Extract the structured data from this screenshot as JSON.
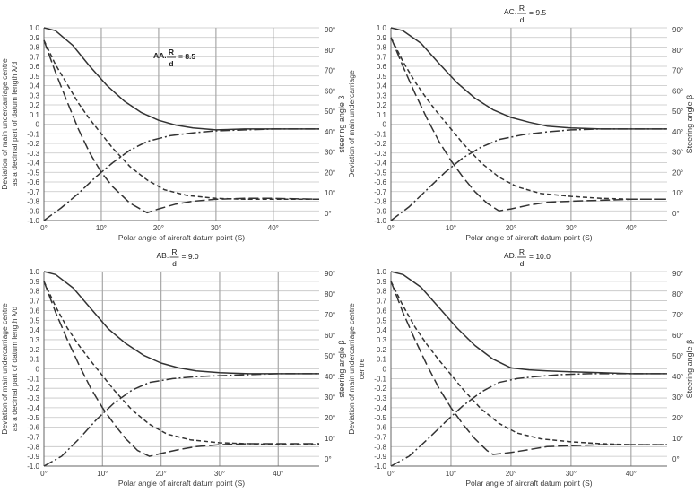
{
  "chart_data": [
    {
      "type": "line",
      "panel": "top-left",
      "title_prefix": "AA.",
      "title_frac_top": "R",
      "title_frac_bottom": "d",
      "title_value": "= 8.5",
      "xlabel": "Polar angle of aircraft datum point (S)",
      "ylabel_lines": [
        "Deviation of main undercarriage centre",
        "as a decimal part of datum length λ/d"
      ],
      "y2label": "steering angle β",
      "xlim": [
        0,
        48
      ],
      "ylim": [
        -1.0,
        1.0
      ],
      "xticks": [
        "0°",
        "10°",
        "20°",
        "30°",
        "40°"
      ],
      "yticks": [
        "1.0",
        "0.9",
        "0.8",
        "0.7",
        "0.6",
        "0.5",
        "0.4",
        "0.3",
        "0.2",
        "0.1",
        "0",
        "-0.1",
        "-0.2",
        "-0.3",
        "-0.4",
        "-0.5",
        "-0.6",
        "-0.7",
        "-0.8",
        "-0.9",
        "-1.0"
      ],
      "y2ticks": [
        "90°",
        "80°",
        "70°",
        "60°",
        "50°",
        "40°",
        "30°",
        "20°",
        "10°",
        "0°"
      ],
      "grid": true,
      "series": [
        {
          "style": "solid",
          "x": [
            0,
            2,
            5,
            8,
            11,
            14,
            17,
            20,
            23,
            26,
            30,
            35,
            40,
            48
          ],
          "y": [
            1.0,
            0.97,
            0.82,
            0.6,
            0.4,
            0.24,
            0.12,
            0.04,
            -0.01,
            -0.04,
            -0.06,
            -0.05,
            -0.05,
            -0.05
          ]
        },
        {
          "style": "short-dash",
          "x": [
            0,
            2,
            4,
            6,
            8,
            10,
            12,
            15,
            18,
            21,
            25,
            30,
            35,
            40,
            48
          ],
          "y": [
            0.87,
            0.62,
            0.42,
            0.22,
            0.05,
            -0.1,
            -0.25,
            -0.44,
            -0.58,
            -0.68,
            -0.74,
            -0.77,
            -0.78,
            -0.78,
            -0.78
          ]
        },
        {
          "style": "long-dash",
          "x": [
            0,
            2,
            4,
            6,
            8,
            10,
            12,
            15,
            18,
            20,
            23,
            26,
            30,
            35,
            40,
            48
          ],
          "y": [
            0.87,
            0.54,
            0.24,
            -0.05,
            -0.3,
            -0.5,
            -0.65,
            -0.82,
            -0.92,
            -0.88,
            -0.83,
            -0.8,
            -0.78,
            -0.77,
            -0.77,
            -0.78
          ]
        },
        {
          "style": "dash-dot",
          "x": [
            0,
            3,
            6,
            9,
            12,
            15,
            18,
            22,
            26,
            30,
            35,
            40,
            48
          ],
          "y": [
            -1.0,
            -0.87,
            -0.72,
            -0.55,
            -0.4,
            -0.27,
            -0.18,
            -0.12,
            -0.09,
            -0.07,
            -0.06,
            -0.05,
            -0.05
          ]
        }
      ]
    },
    {
      "type": "line",
      "panel": "top-right",
      "title_prefix": "AC.",
      "title_frac_top": "R",
      "title_frac_bottom": "d",
      "title_value": "= 9.5",
      "xlabel": "Polar angle of aircraft datum point (S)",
      "ylabel_lines": [
        "Deviation of main undercarriage"
      ],
      "y2label": "Steering angle β",
      "xlim": [
        0,
        46
      ],
      "ylim": [
        -1.0,
        1.0
      ],
      "xticks": [
        "0°",
        "10°",
        "20°",
        "30°",
        "40°"
      ],
      "yticks": [
        "1.0",
        "0.9",
        "0.8",
        "0.7",
        "0.6",
        "0.5",
        "0.4",
        "0.3",
        "0.2",
        "0.1",
        "0",
        "-0.1",
        "-0.2",
        "-0.3",
        "-0.4",
        "-0.5",
        "-0.6",
        "-0.7",
        "-0.8",
        "-0.9",
        "-1.0"
      ],
      "y2ticks": [
        "90°",
        "80°",
        "70°",
        "60°",
        "50°",
        "40°",
        "30°",
        "20°",
        "10°",
        "0°"
      ],
      "grid": true,
      "series": [
        {
          "style": "solid",
          "x": [
            0,
            2,
            5,
            8,
            11,
            14,
            17,
            20,
            23,
            26,
            30,
            35,
            40,
            46
          ],
          "y": [
            1.0,
            0.97,
            0.84,
            0.63,
            0.43,
            0.27,
            0.15,
            0.07,
            0.02,
            -0.02,
            -0.04,
            -0.05,
            -0.05,
            -0.05
          ]
        },
        {
          "style": "short-dash",
          "x": [
            0,
            2,
            4,
            6,
            8,
            10,
            12,
            15,
            18,
            21,
            25,
            30,
            35,
            40,
            46
          ],
          "y": [
            0.9,
            0.65,
            0.44,
            0.26,
            0.1,
            -0.05,
            -0.2,
            -0.4,
            -0.55,
            -0.65,
            -0.72,
            -0.75,
            -0.77,
            -0.78,
            -0.78
          ]
        },
        {
          "style": "long-dash",
          "x": [
            0,
            2,
            4,
            6,
            8,
            10,
            12,
            14,
            16,
            18,
            20,
            23,
            26,
            30,
            35,
            40,
            46
          ],
          "y": [
            0.9,
            0.6,
            0.32,
            0.06,
            -0.18,
            -0.38,
            -0.55,
            -0.7,
            -0.82,
            -0.9,
            -0.88,
            -0.84,
            -0.81,
            -0.8,
            -0.79,
            -0.78,
            -0.78
          ]
        },
        {
          "style": "dash-dot",
          "x": [
            0,
            3,
            6,
            9,
            12,
            15,
            18,
            22,
            26,
            30,
            35,
            40,
            46
          ],
          "y": [
            -1.0,
            -0.86,
            -0.68,
            -0.5,
            -0.35,
            -0.24,
            -0.16,
            -0.11,
            -0.08,
            -0.06,
            -0.05,
            -0.05,
            -0.05
          ]
        }
      ]
    },
    {
      "type": "line",
      "panel": "bottom-left",
      "title_prefix": "AB.",
      "title_frac_top": "R",
      "title_frac_bottom": "d",
      "title_value": "= 9.0",
      "xlabel": "Polar angle of aircraft datum point (S)",
      "ylabel_lines": [
        "Deviation of main undercarriage centre",
        "as a decimal part of datum length λ/d"
      ],
      "y2label": "steering angle β",
      "xlim": [
        0,
        47
      ],
      "ylim": [
        -1.0,
        1.0
      ],
      "xticks": [
        "0°",
        "10°",
        "20°",
        "30°",
        "40°"
      ],
      "yticks": [
        "1.0",
        "0.9",
        "0.8",
        "0.7",
        "0.6",
        "0.5",
        "0.4",
        "0.3",
        "0.2",
        "0.1",
        "0",
        "-0.1",
        "-0.2",
        "-0.3",
        "-0.4",
        "-0.5",
        "-0.6",
        "-0.7",
        "-0.8",
        "-0.9",
        "-1.0"
      ],
      "y2ticks": [
        "90°",
        "80°",
        "70°",
        "60°",
        "50°",
        "40°",
        "30°",
        "20°",
        "10°",
        "0°"
      ],
      "grid": true,
      "series": [
        {
          "style": "solid",
          "x": [
            0,
            2,
            5,
            8,
            11,
            14,
            17,
            20,
            23,
            26,
            30,
            35,
            40,
            47
          ],
          "y": [
            1.0,
            0.97,
            0.83,
            0.62,
            0.41,
            0.26,
            0.14,
            0.06,
            0.01,
            -0.02,
            -0.04,
            -0.05,
            -0.05,
            -0.05
          ]
        },
        {
          "style": "short-dash",
          "x": [
            0,
            2,
            4,
            6,
            8,
            10,
            12,
            15,
            18,
            21,
            25,
            30,
            35,
            40,
            47
          ],
          "y": [
            0.9,
            0.64,
            0.42,
            0.24,
            0.08,
            -0.07,
            -0.22,
            -0.42,
            -0.57,
            -0.67,
            -0.73,
            -0.76,
            -0.77,
            -0.78,
            -0.78
          ]
        },
        {
          "style": "long-dash",
          "x": [
            0,
            2,
            4,
            6,
            8,
            10,
            12,
            14,
            16,
            18,
            20,
            23,
            26,
            30,
            35,
            40,
            47
          ],
          "y": [
            0.9,
            0.58,
            0.3,
            0.04,
            -0.2,
            -0.4,
            -0.57,
            -0.72,
            -0.84,
            -0.9,
            -0.87,
            -0.83,
            -0.8,
            -0.78,
            -0.77,
            -0.77,
            -0.77
          ]
        },
        {
          "style": "dash-dot",
          "x": [
            0,
            3,
            6,
            9,
            12,
            15,
            18,
            22,
            26,
            30,
            35,
            40,
            47
          ],
          "y": [
            -1.0,
            -0.9,
            -0.72,
            -0.52,
            -0.35,
            -0.22,
            -0.14,
            -0.1,
            -0.08,
            -0.07,
            -0.06,
            -0.05,
            -0.05
          ]
        }
      ]
    },
    {
      "type": "line",
      "panel": "bottom-right",
      "title_prefix": "AD.",
      "title_frac_top": "R",
      "title_frac_bottom": "d",
      "title_value": "= 10.0",
      "xlabel": "Polar angle of aircraft datum point (S)",
      "ylabel_lines": [
        "Deviation of main undercarriage centre",
        "centre"
      ],
      "y2label": "Steering angle β",
      "xlim": [
        0,
        46
      ],
      "ylim": [
        -1.0,
        1.0
      ],
      "xticks": [
        "0°",
        "10°",
        "20°",
        "30°",
        "40°"
      ],
      "yticks": [
        "1.0",
        "0.9",
        "0.8",
        "0.7",
        "0.6",
        "0.5",
        "0.4",
        "0.3",
        "0.2",
        "0.1",
        "0",
        "-0.1",
        "-0.2",
        "-0.3",
        "-0.4",
        "-0.5",
        "-0.6",
        "-0.7",
        "-0.8",
        "-0.9",
        "-1.0"
      ],
      "y2ticks": [
        "90°",
        "80°",
        "70°",
        "60°",
        "50°",
        "40°",
        "30°",
        "20°",
        "10°",
        "0°"
      ],
      "grid": true,
      "series": [
        {
          "style": "solid",
          "x": [
            0,
            2,
            5,
            8,
            11,
            14,
            17,
            20,
            23,
            26,
            30,
            35,
            40,
            46
          ],
          "y": [
            1.0,
            0.97,
            0.84,
            0.63,
            0.42,
            0.24,
            0.1,
            0.01,
            -0.01,
            -0.02,
            -0.03,
            -0.04,
            -0.05,
            -0.05
          ]
        },
        {
          "style": "short-dash",
          "x": [
            0,
            2,
            4,
            6,
            8,
            10,
            12,
            15,
            18,
            21,
            25,
            30,
            35,
            40,
            46
          ],
          "y": [
            0.9,
            0.65,
            0.43,
            0.25,
            0.09,
            -0.06,
            -0.21,
            -0.41,
            -0.56,
            -0.66,
            -0.72,
            -0.75,
            -0.77,
            -0.78,
            -0.78
          ]
        },
        {
          "style": "long-dash",
          "x": [
            0,
            2,
            4,
            6,
            8,
            10,
            12,
            14,
            16,
            17,
            20,
            23,
            26,
            30,
            35,
            40,
            46
          ],
          "y": [
            0.9,
            0.58,
            0.3,
            0.04,
            -0.2,
            -0.4,
            -0.57,
            -0.72,
            -0.84,
            -0.88,
            -0.86,
            -0.83,
            -0.8,
            -0.79,
            -0.78,
            -0.78,
            -0.78
          ]
        },
        {
          "style": "dash-dot",
          "x": [
            0,
            3,
            6,
            9,
            12,
            15,
            18,
            21,
            24,
            28,
            33,
            40,
            46
          ],
          "y": [
            -1.0,
            -0.9,
            -0.73,
            -0.55,
            -0.38,
            -0.24,
            -0.14,
            -0.1,
            -0.08,
            -0.06,
            -0.05,
            -0.05,
            -0.05
          ]
        }
      ]
    }
  ]
}
